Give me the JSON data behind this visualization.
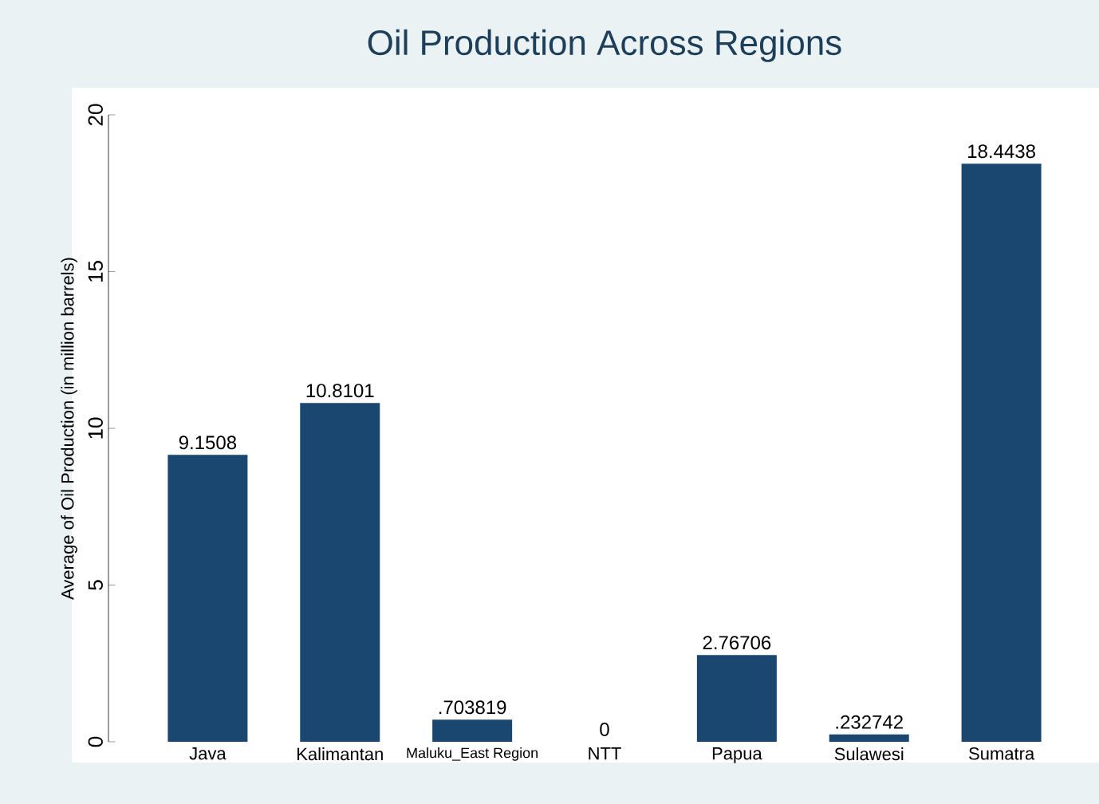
{
  "chart_data": {
    "type": "bar",
    "title": "Oil Production Across Regions",
    "ylabel": "Average of Oil Production (in million barrels)",
    "categories": [
      "Java",
      "Kalimantan",
      "Maluku_East Region",
      "NTT",
      "Papua",
      "Sulawesi",
      "Sumatra"
    ],
    "values": [
      9.1508,
      10.8101,
      0.703819,
      0,
      2.76706,
      0.232742,
      18.4438
    ],
    "value_labels": [
      "9.1508",
      "10.8101",
      ".703819",
      "0",
      "2.76706",
      ".232742",
      "18.4438"
    ],
    "color": "#1a476f",
    "ylim": [
      0,
      20
    ],
    "yticks": [
      0,
      5,
      10,
      15,
      20
    ],
    "grid": false
  }
}
